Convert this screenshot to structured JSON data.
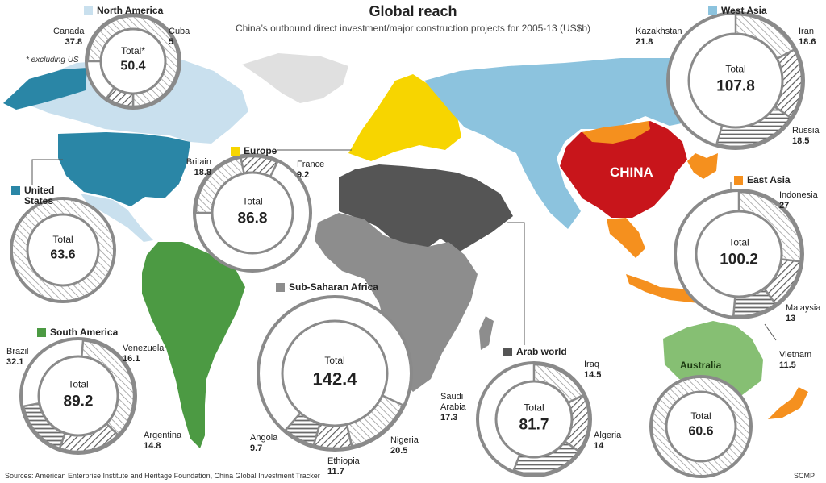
{
  "title": "Global reach",
  "subtitle": "China’s outbound direct investment/major construction projects for 2005-13 (US$b)",
  "source": "Sources: American Enterprise Institute and Heritage Foundation, China Global Investment Tracker",
  "credit": "SCMP",
  "map": {
    "china_label": "CHINA",
    "australia_label": "Australia"
  },
  "total_prefix": "Total",
  "colors": {
    "north_america": "#c9e0ee",
    "united_states": "#2a86a6",
    "europe": "#f7d500",
    "sub_saharan_africa": "#8d8d8d",
    "arab_world": "#555555",
    "west_asia": "#8cc3de",
    "east_asia": "#f5901e",
    "china": "#c8151b",
    "south_america": "#4c9a43",
    "australia": "#86bf73",
    "donut": "#8a8a8a",
    "land_other": "#e0e0e0"
  },
  "regions": {
    "north_america": {
      "title": "North America",
      "total": "50.4",
      "total_label": "Total*",
      "note": "* excluding US"
    },
    "united_states": {
      "title": "United States",
      "total": "63.6"
    },
    "europe": {
      "title": "Europe",
      "total": "86.8"
    },
    "south_america": {
      "title": "South America",
      "total": "89.2"
    },
    "sub_saharan_africa": {
      "title": "Sub-Saharan Africa",
      "total": "142.4"
    },
    "arab_world": {
      "title": "Arab world",
      "total": "81.7"
    },
    "west_asia": {
      "title": "West Asia",
      "total": "107.8"
    },
    "east_asia": {
      "title": "East Asia",
      "total": "100.2"
    },
    "australia": {
      "title": "Australia",
      "total": "60.6"
    }
  },
  "chart_data": [
    {
      "type": "pie",
      "region": "North America",
      "title": "North America",
      "total": 50.4,
      "categories": [
        "Canada",
        "Cuba"
      ],
      "values": [
        37.8,
        5
      ]
    },
    {
      "type": "pie",
      "region": "United States",
      "title": "United States",
      "total": 63.6,
      "categories": [],
      "values": []
    },
    {
      "type": "pie",
      "region": "Europe",
      "title": "Europe",
      "total": 86.8,
      "categories": [
        "Britain",
        "France"
      ],
      "values": [
        18.8,
        9.2
      ]
    },
    {
      "type": "pie",
      "region": "South America",
      "title": "South America",
      "total": 89.2,
      "categories": [
        "Brazil",
        "Venezuela",
        "Argentina"
      ],
      "values": [
        32.1,
        16.1,
        14.8
      ]
    },
    {
      "type": "pie",
      "region": "Sub-Saharan Africa",
      "title": "Sub-Saharan Africa",
      "total": 142.4,
      "categories": [
        "Nigeria",
        "Ethiopia",
        "Angola"
      ],
      "values": [
        20.5,
        11.7,
        9.7
      ]
    },
    {
      "type": "pie",
      "region": "Arab world",
      "title": "Arab world",
      "total": 81.7,
      "categories": [
        "Iraq",
        "Algeria",
        "Saudi Arabia"
      ],
      "values": [
        14.5,
        14,
        17.3
      ]
    },
    {
      "type": "pie",
      "region": "West Asia",
      "title": "West Asia",
      "total": 107.8,
      "categories": [
        "Iran",
        "Russia",
        "Kazakhstan"
      ],
      "values": [
        18.6,
        18.5,
        21.8
      ]
    },
    {
      "type": "pie",
      "region": "East Asia",
      "title": "East Asia",
      "total": 100.2,
      "categories": [
        "Indonesia",
        "Malaysia",
        "Vietnam"
      ],
      "values": [
        27,
        13,
        11.5
      ]
    },
    {
      "type": "pie",
      "region": "Australia",
      "title": "Australia",
      "total": 60.6,
      "categories": [],
      "values": []
    }
  ]
}
